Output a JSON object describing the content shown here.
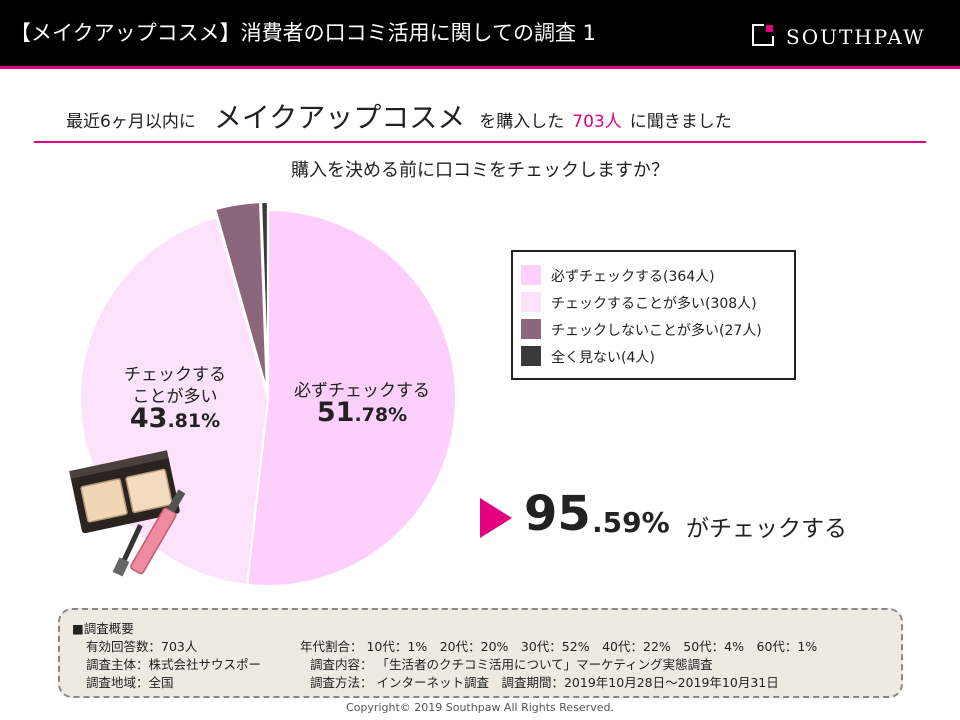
{
  "header": {
    "title": "【メイクアップコスメ】消費者の口コミ活用に関しての調査 1",
    "logo_text": "SOUTHPAW"
  },
  "subtitle": {
    "prefix": "最近6ヶ月以内に",
    "category": "メイクアップコスメ",
    "middle": "を購入した",
    "count": "703人",
    "suffix": "に聞きました"
  },
  "question": "購入を決める前に口コミをチェックしますか？",
  "chart_data": {
    "type": "pie",
    "title": "購入を決める前に口コミをチェックしますか？",
    "slices": [
      {
        "label": "必ずチェックする",
        "legend": "必ずチェックする(364人)",
        "count": 364,
        "percent": 51.78,
        "color": "#fdd0fb"
      },
      {
        "label": "チェックすることが多い",
        "legend": "チェックすることが多い(308人)",
        "count": 308,
        "percent": 43.81,
        "color": "#fde2fb"
      },
      {
        "label": "チェックしないことが多い",
        "legend": "チェックしないことが多い(27人)",
        "count": 27,
        "percent": 3.84,
        "color": "#8c667c"
      },
      {
        "label": "全く見ない",
        "legend": "全く見ない(4人)",
        "count": 4,
        "percent": 0.57,
        "color": "#3a3a3a"
      }
    ],
    "legend_position": "right"
  },
  "pie_labels": {
    "slice1_text": "必ずチェックする",
    "slice1_int": "51",
    "slice1_dec": ".78%",
    "slice2_text_line1": "チェックする",
    "slice2_text_line2": "ことが多い",
    "slice2_int": "43",
    "slice2_dec": ".81%"
  },
  "highlight": {
    "int": "95",
    "dec": ".59%",
    "text": "がチェックする"
  },
  "survey": {
    "heading": "■調査概要",
    "respondents": "有効回答数：703人",
    "sponsor": "調査主体：株式会社サウスポー",
    "region": "調査地域：全国",
    "age_ratio": "年代割合： 10代：1%　20代：20%　30代：52%　40代：22%　50代：4%　60代：1%",
    "content": "調査内容： 「生活者のクチコミ活用について」マーケティング実態調査",
    "method": "調査方法： インターネット調査　調査期間：2019年10月28日～2019年10月31日"
  },
  "copyright": "Copyright© 2019 Southpaw All Rights Reserved."
}
